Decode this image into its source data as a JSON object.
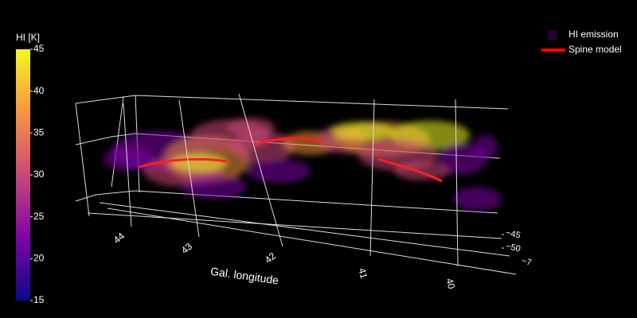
{
  "chart_data": {
    "type": "volume3d",
    "colorbar": {
      "title": "HI [K]",
      "clim": [
        15,
        45
      ],
      "ticks": [
        15,
        20,
        25,
        30,
        35,
        40,
        45
      ],
      "colors": [
        "#0d0887",
        "#7e03a8",
        "#cc4778",
        "#f89540",
        "#f0f921"
      ]
    },
    "series": [
      {
        "name": "HI emission",
        "color": "#7e03a8"
      },
      {
        "name": "Spine model",
        "color": "#ff0000"
      }
    ],
    "xaxis_title": "Gal. longitude",
    "xticks": [
      44,
      43,
      42,
      41,
      40
    ],
    "yticks": [
      {
        "value": -45,
        "label": "−45"
      },
      {
        "value": -50,
        "label": "−50"
      }
    ],
    "annotations": [
      "−7"
    ]
  }
}
